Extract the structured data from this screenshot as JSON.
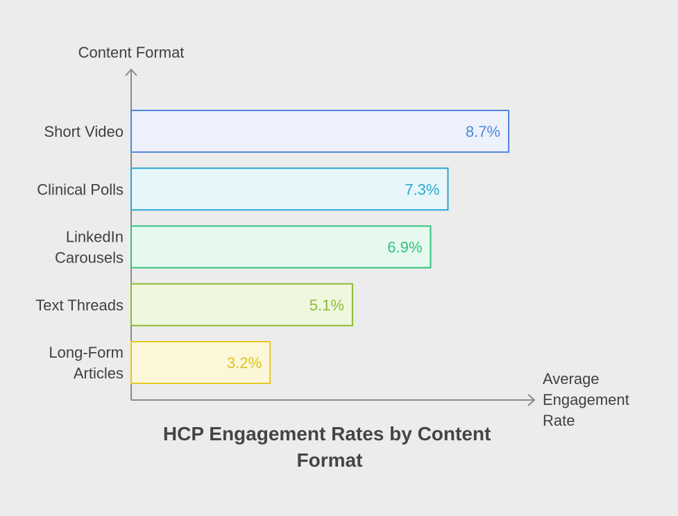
{
  "chart_data": {
    "type": "bar",
    "orientation": "horizontal",
    "title_lines": [
      "HCP Engagement Rates by Content",
      "Format"
    ],
    "ylabel": "Content Format",
    "xlabel_lines": [
      "Average",
      "Engagement",
      "Rate"
    ],
    "categories": [
      {
        "label_lines": [
          "Short Video"
        ],
        "value": 8.7,
        "value_label": "8.7%",
        "stroke": "#4f88d8",
        "fill": "#edf1fc",
        "text": "#4f88d8"
      },
      {
        "label_lines": [
          "Clinical Polls"
        ],
        "value": 7.3,
        "value_label": "7.3%",
        "stroke": "#27a9cf",
        "fill": "#e6f6fb",
        "text": "#27a9cf"
      },
      {
        "label_lines": [
          "LinkedIn",
          "Carousels"
        ],
        "value": 6.9,
        "value_label": "6.9%",
        "stroke": "#34c17d",
        "fill": "#e5f9ef",
        "text": "#34c17d"
      },
      {
        "label_lines": [
          "Text Threads"
        ],
        "value": 5.1,
        "value_label": "5.1%",
        "stroke": "#8cbb31",
        "fill": "#eff8df",
        "text": "#8cbb31"
      },
      {
        "label_lines": [
          "Long-Form",
          "Articles"
        ],
        "value": 3.2,
        "value_label": "3.2%",
        "stroke": "#e4c920",
        "fill": "#fcf7d9",
        "text": "#dcc21d"
      }
    ],
    "xlim": [
      0,
      10
    ],
    "grid": false,
    "legend": "none"
  }
}
